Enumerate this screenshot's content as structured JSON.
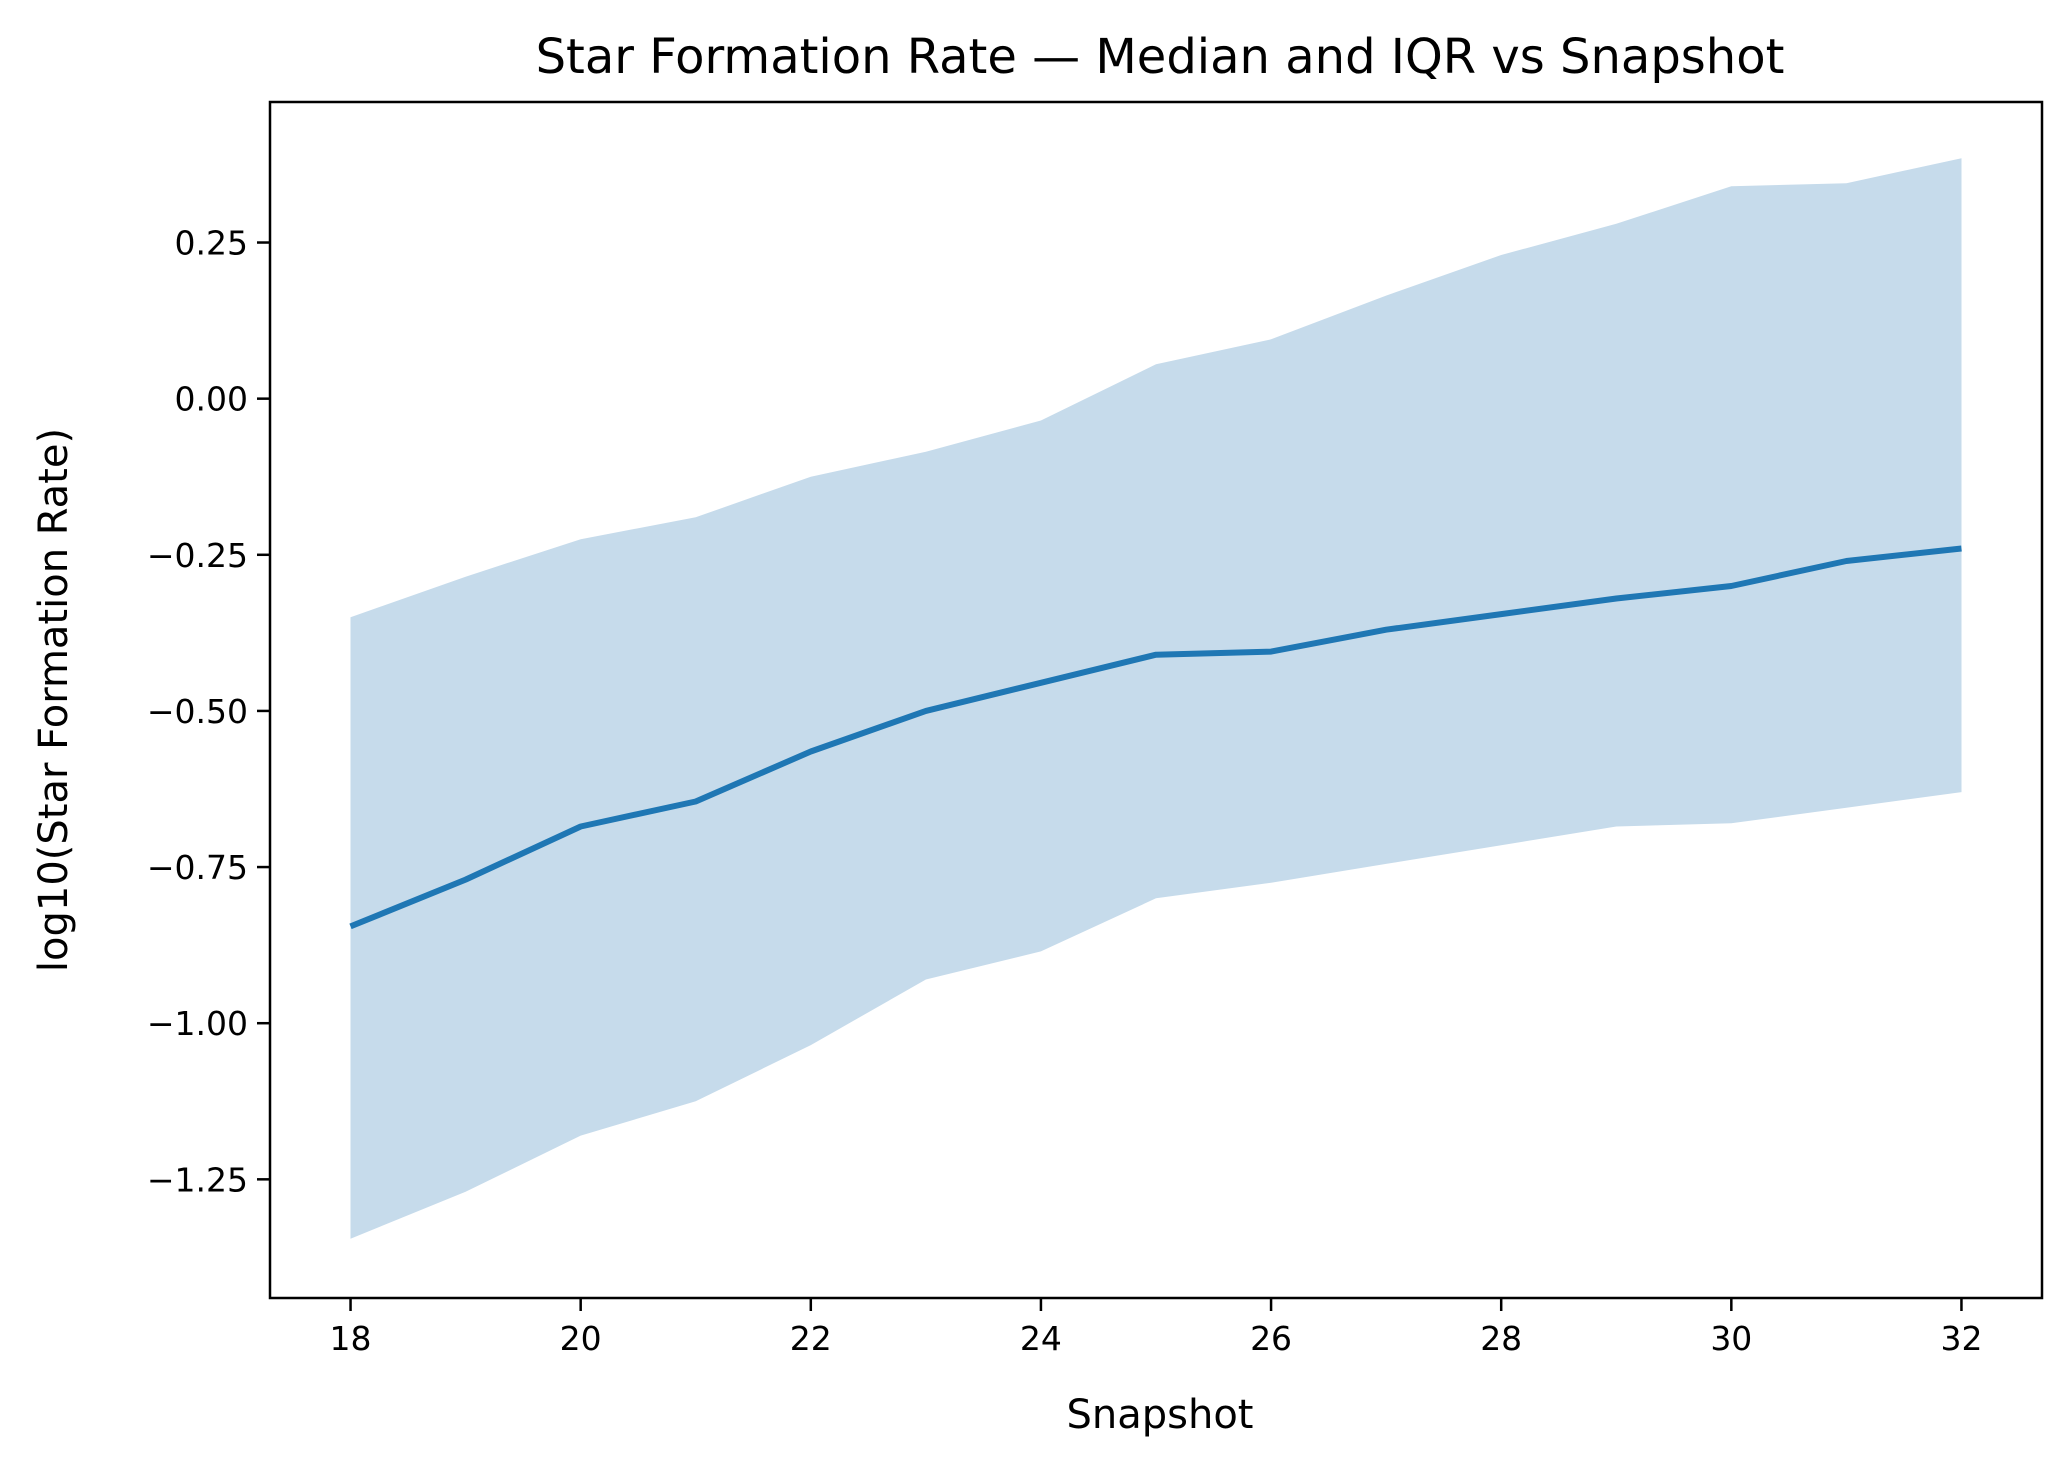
{
  "chart_data": {
    "type": "area",
    "title": "Star Formation Rate — Median and IQR vs Snapshot",
    "xlabel": "Snapshot",
    "ylabel": "log10(Star Formation Rate)",
    "x": [
      18,
      19,
      20,
      21,
      22,
      23,
      24,
      25,
      26,
      27,
      28,
      29,
      30,
      31,
      32
    ],
    "series": [
      {
        "kind": "line",
        "values": [
          -0.845,
          -0.77,
          -0.685,
          -0.645,
          -0.565,
          -0.5,
          -0.455,
          -0.41,
          -0.405,
          -0.37,
          -0.345,
          -0.32,
          -0.3,
          -0.26,
          -0.24
        ]
      },
      {
        "kind": "band",
        "lower": [
          -1.345,
          -1.27,
          -1.18,
          -1.125,
          -1.035,
          -0.93,
          -0.885,
          -0.8,
          -0.775,
          -0.745,
          -0.715,
          -0.685,
          -0.68,
          -0.655,
          -0.63
        ],
        "upper": [
          -0.35,
          -0.285,
          -0.225,
          -0.19,
          -0.125,
          -0.085,
          -0.035,
          0.055,
          0.095,
          0.165,
          0.23,
          0.28,
          0.34,
          0.345,
          0.385
        ]
      }
    ],
    "xlim": [
      17.3,
      32.7
    ],
    "ylim": [
      -1.44,
      0.475
    ],
    "xticks": [
      18,
      20,
      22,
      24,
      26,
      28,
      30,
      32
    ],
    "xtick_labels": [
      "18",
      "20",
      "22",
      "24",
      "26",
      "28",
      "30",
      "32"
    ],
    "yticks": [
      -1.25,
      -1.0,
      -0.75,
      -0.5,
      -0.25,
      0.0,
      0.25
    ],
    "ytick_labels": [
      "−1.25",
      "−1.00",
      "−0.75",
      "−0.50",
      "−0.25",
      "0.00",
      "0.25"
    ],
    "grid": false,
    "legend": "none",
    "colors": {
      "line": "#1f77b4",
      "band": "#c6dbeb",
      "axis": "#000000"
    }
  }
}
